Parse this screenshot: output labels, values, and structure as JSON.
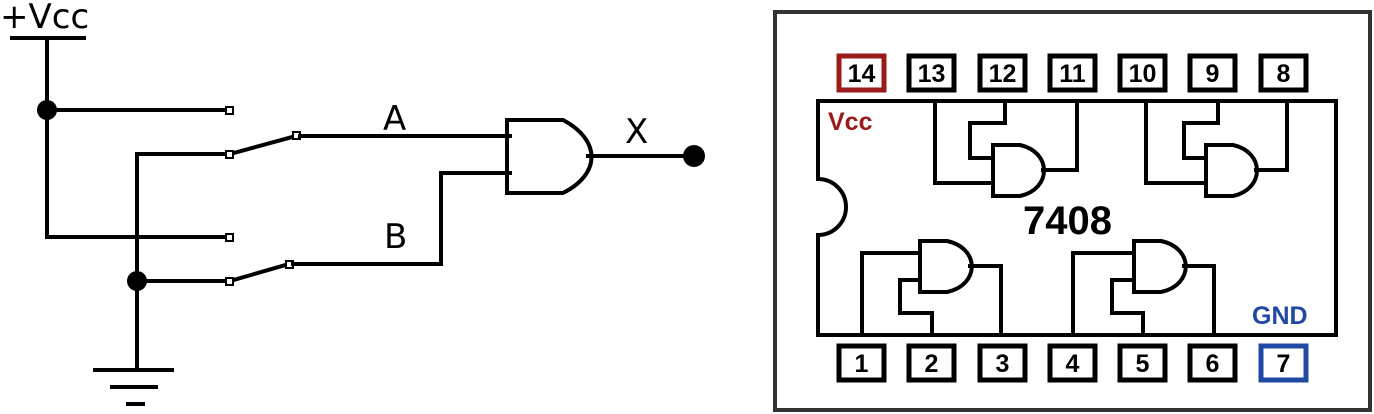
{
  "circuit": {
    "supply_label": "+Vcc",
    "input_a_label": "A",
    "input_b_label": "B",
    "output_label": "X"
  },
  "chip": {
    "part_number": "7408",
    "vcc_label": "Vcc",
    "gnd_label": "GND",
    "top_pins": [
      "14",
      "13",
      "12",
      "11",
      "10",
      "9",
      "8"
    ],
    "bottom_pins": [
      "1",
      "2",
      "3",
      "4",
      "5",
      "6",
      "7"
    ],
    "colors": {
      "vcc": "#9b1a1a",
      "gnd": "#1f49a3",
      "default": "#000000"
    }
  }
}
